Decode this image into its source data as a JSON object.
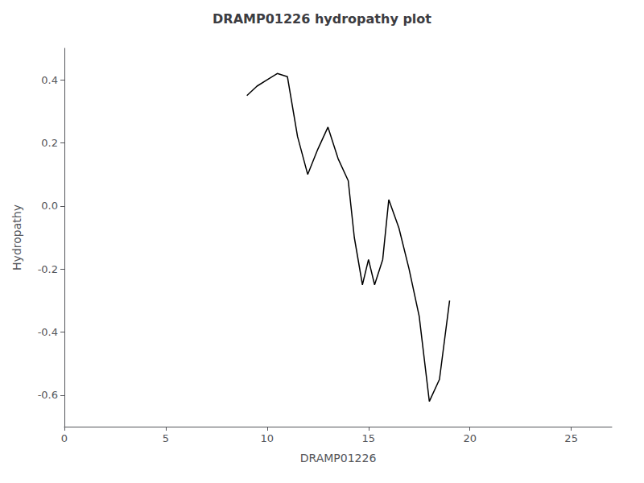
{
  "chart_data": {
    "type": "line",
    "title": "DRAMP01226 hydropathy plot",
    "xlabel": "DRAMP01226",
    "ylabel": "Hydropathy",
    "x": [
      9.0,
      9.5,
      10.0,
      10.5,
      11.0,
      11.5,
      12.0,
      12.5,
      13.0,
      13.5,
      14.0,
      14.3,
      14.7,
      15.0,
      15.3,
      15.7,
      16.0,
      16.5,
      17.0,
      17.5,
      18.0,
      18.5,
      19.0
    ],
    "values": [
      0.35,
      0.38,
      0.4,
      0.42,
      0.41,
      0.22,
      0.1,
      0.18,
      0.25,
      0.15,
      0.08,
      -0.1,
      -0.25,
      -0.17,
      -0.25,
      -0.17,
      0.02,
      -0.07,
      -0.2,
      -0.35,
      -0.62,
      -0.55,
      -0.3
    ],
    "color": "#000000",
    "xlim": [
      0,
      27
    ],
    "ylim": [
      -0.7,
      0.5
    ],
    "xticks": [
      0,
      5,
      10,
      15,
      20,
      25
    ],
    "yticks": [
      -0.6,
      -0.4,
      -0.2,
      {
        "value": 0,
        "label": "0.0"
      },
      0.2,
      0.4
    ],
    "grid": false
  }
}
